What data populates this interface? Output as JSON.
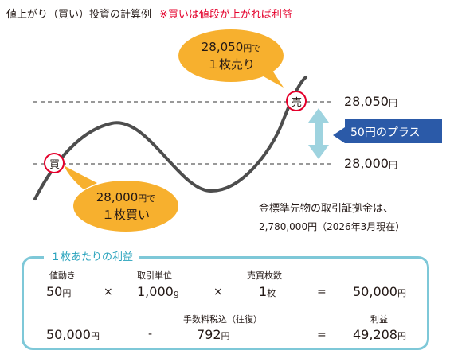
{
  "title": "値上がり（買い）投資の計算例",
  "title_note": "※買いは値段が上がれば利益",
  "sell_bubble": {
    "line1": "28,050",
    "line1_unit": "円で",
    "line2": "１枚売り"
  },
  "buy_bubble": {
    "line1": "28,000",
    "line1_unit": "円で",
    "line2": "１枚買い"
  },
  "sell_marker": "売",
  "buy_marker": "買",
  "price_high": {
    "value": "28,050",
    "unit": "円"
  },
  "price_low": {
    "value": "28,000",
    "unit": "円"
  },
  "plus_label": "50円のプラス",
  "note": {
    "line1": "金標準先物の取引証拠金は、",
    "line2": "2,780,000円（2026年3月現在）"
  },
  "colors": {
    "curve": "#4d4d4d",
    "bubble": "#f7b02e",
    "marker_border": "#e4002b",
    "arrow": "#9ed3df",
    "plus_box": "#2b5aa8",
    "frame": "#7ec8d8"
  },
  "calc": {
    "box_title": "１枚あたりの利益",
    "row1": {
      "label_price_move": "値動き",
      "price_move_value": "50",
      "price_move_unit": "円",
      "op1": "×",
      "label_unit": "取引単位",
      "unit_value": "1,000",
      "unit_unit": "g",
      "op2": "×",
      "label_contracts": "売買枚数",
      "contracts_value": "1",
      "contracts_unit": "枚",
      "eq": "=",
      "result_value": "50,000",
      "result_unit": "円"
    },
    "row2": {
      "gross_value": "50,000",
      "gross_unit": "円",
      "minus": "-",
      "label_fee": "手数料税込（往復）",
      "fee_value": "792",
      "fee_unit": "円",
      "eq": "=",
      "label_profit": "利益",
      "profit_value": "49,208",
      "profit_unit": "円"
    }
  }
}
